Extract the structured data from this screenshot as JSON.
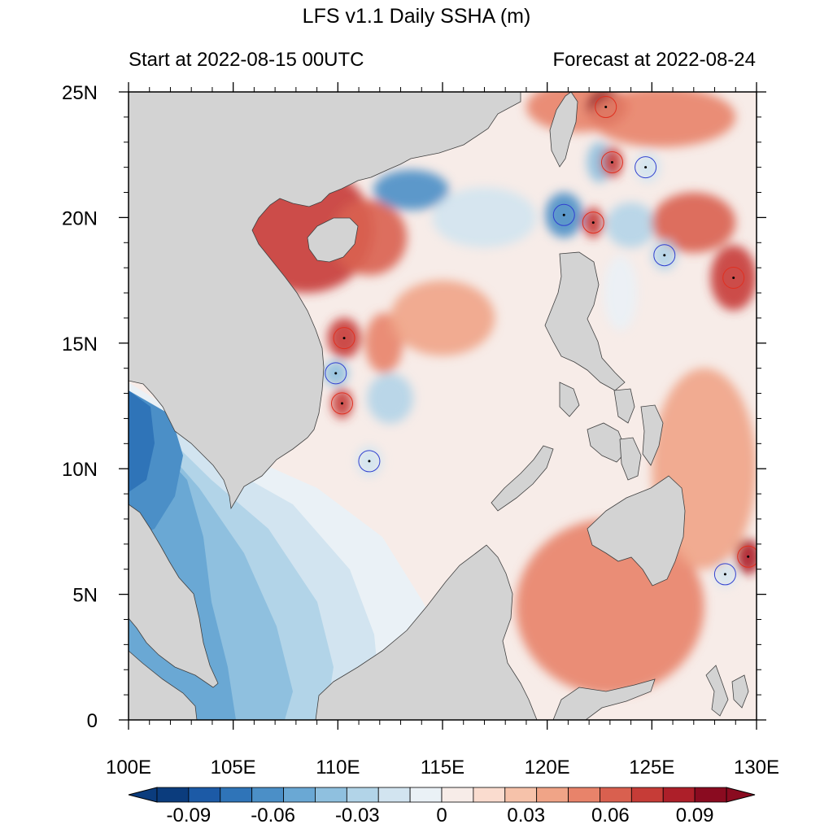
{
  "title": "LFS v1.1 Daily SSHA (m)",
  "subtitle_left": "Start at 2022-08-15 00UTC",
  "subtitle_right": "Forecast at 2022-08-24",
  "colors": {
    "land": "#d3d3d3",
    "land_edge": "#404040",
    "ocean_neutral": "#f7ece8",
    "frame": "#000000",
    "eddy_warm": "#e03020",
    "eddy_cold": "#3040d0"
  },
  "chart_data": {
    "type": "heatmap",
    "variable": "SSHA",
    "unit": "m",
    "x_axis": {
      "range": [
        100,
        130
      ],
      "ticks": [
        100,
        105,
        110,
        115,
        120,
        125,
        130
      ],
      "tick_labels": [
        "100E",
        "105E",
        "110E",
        "115E",
        "120E",
        "125E",
        "130E"
      ]
    },
    "y_axis": {
      "range": [
        0,
        25
      ],
      "ticks": [
        0,
        5,
        10,
        15,
        20,
        25
      ],
      "tick_labels": [
        "0",
        "5N",
        "10N",
        "15N",
        "20N",
        "25N"
      ]
    },
    "colorbar": {
      "levels": [
        -0.1,
        -0.09,
        -0.08,
        -0.07,
        -0.06,
        -0.05,
        -0.04,
        -0.03,
        -0.02,
        -0.01,
        0,
        0.01,
        0.02,
        0.03,
        0.04,
        0.05,
        0.06,
        0.07,
        0.08,
        0.09,
        0.1
      ],
      "colors": [
        "#0b3c7d",
        "#1c5aa6",
        "#2f74b8",
        "#4b8fc7",
        "#6aa8d4",
        "#8fc0df",
        "#b2d4e8",
        "#d2e4f0",
        "#eaf1f6",
        "#f7ece8",
        "#fadccf",
        "#f6c2aa",
        "#f0a487",
        "#e8836a",
        "#d9604f",
        "#c63c37",
        "#ad1f29",
        "#8a0b20"
      ],
      "label_values": [
        -0.09,
        -0.06,
        -0.03,
        0,
        0.03,
        0.06,
        0.09
      ],
      "labels": [
        "-0.09",
        "-0.06",
        "-0.03",
        "0",
        "0.03",
        "0.06",
        "0.09"
      ],
      "end_arrows": true
    },
    "eddies": [
      {
        "lon": 122.8,
        "lat": 24.4,
        "type": "warm"
      },
      {
        "lon": 123.1,
        "lat": 22.2,
        "type": "warm"
      },
      {
        "lon": 124.7,
        "lat": 22.0,
        "type": "cold"
      },
      {
        "lon": 120.8,
        "lat": 20.1,
        "type": "cold"
      },
      {
        "lon": 122.2,
        "lat": 19.8,
        "type": "warm"
      },
      {
        "lon": 125.6,
        "lat": 18.5,
        "type": "cold"
      },
      {
        "lon": 128.9,
        "lat": 17.6,
        "type": "warm"
      },
      {
        "lon": 110.3,
        "lat": 15.2,
        "type": "warm"
      },
      {
        "lon": 109.9,
        "lat": 13.8,
        "type": "cold"
      },
      {
        "lon": 110.2,
        "lat": 12.6,
        "type": "warm"
      },
      {
        "lon": 111.5,
        "lat": 10.3,
        "type": "cold"
      },
      {
        "lon": 129.6,
        "lat": 6.5,
        "type": "warm"
      },
      {
        "lon": 128.5,
        "lat": 5.8,
        "type": "cold"
      }
    ],
    "anomaly_features": [
      {
        "lon": 108.5,
        "lat": 19.5,
        "value": 0.05,
        "rx": 3.2,
        "ry": 2.5
      },
      {
        "lon": 111.5,
        "lat": 19.2,
        "value": 0.04,
        "rx": 1.8,
        "ry": 1.5
      },
      {
        "lon": 113.5,
        "lat": 21.1,
        "value": -0.07,
        "rx": 1.8,
        "ry": 0.8
      },
      {
        "lon": 117.0,
        "lat": 20.0,
        "value": -0.03,
        "rx": 2.5,
        "ry": 1.2
      },
      {
        "lon": 121.5,
        "lat": 24.4,
        "value": 0.03,
        "rx": 2.5,
        "ry": 1.0
      },
      {
        "lon": 122.8,
        "lat": 24.4,
        "value": 0.07,
        "rx": 0.9,
        "ry": 0.7
      },
      {
        "lon": 125.5,
        "lat": 24.0,
        "value": 0.03,
        "rx": 3.5,
        "ry": 1.2
      },
      {
        "lon": 122.5,
        "lat": 22.2,
        "value": -0.05,
        "rx": 0.6,
        "ry": 0.8
      },
      {
        "lon": 123.1,
        "lat": 22.2,
        "value": 0.05,
        "rx": 0.5,
        "ry": 0.6
      },
      {
        "lon": 124.8,
        "lat": 22.0,
        "value": -0.03,
        "rx": 0.6,
        "ry": 0.6
      },
      {
        "lon": 120.8,
        "lat": 20.1,
        "value": -0.07,
        "rx": 0.9,
        "ry": 0.9
      },
      {
        "lon": 122.2,
        "lat": 19.8,
        "value": 0.05,
        "rx": 0.5,
        "ry": 0.6
      },
      {
        "lon": 124.0,
        "lat": 19.7,
        "value": -0.04,
        "rx": 1.2,
        "ry": 0.9
      },
      {
        "lon": 127.0,
        "lat": 19.8,
        "value": 0.04,
        "rx": 2.0,
        "ry": 1.2
      },
      {
        "lon": 125.6,
        "lat": 18.5,
        "value": -0.04,
        "rx": 0.6,
        "ry": 0.6
      },
      {
        "lon": 128.9,
        "lat": 17.6,
        "value": 0.05,
        "rx": 1.1,
        "ry": 1.3
      },
      {
        "lon": 123.5,
        "lat": 17.0,
        "value": -0.02,
        "rx": 0.8,
        "ry": 1.5
      },
      {
        "lon": 110.3,
        "lat": 15.2,
        "value": 0.05,
        "rx": 0.8,
        "ry": 0.8
      },
      {
        "lon": 112.2,
        "lat": 15.0,
        "value": 0.03,
        "rx": 0.9,
        "ry": 1.2
      },
      {
        "lon": 109.9,
        "lat": 13.8,
        "value": -0.05,
        "rx": 0.6,
        "ry": 0.5
      },
      {
        "lon": 112.5,
        "lat": 12.8,
        "value": -0.04,
        "rx": 1.1,
        "ry": 1.0
      },
      {
        "lon": 110.2,
        "lat": 12.6,
        "value": 0.05,
        "rx": 0.5,
        "ry": 0.6
      },
      {
        "lon": 111.5,
        "lat": 10.3,
        "value": -0.03,
        "rx": 0.6,
        "ry": 0.6
      },
      {
        "lon": 115.0,
        "lat": 16.0,
        "value": 0.02,
        "rx": 2.5,
        "ry": 1.5
      },
      {
        "lon": 129.6,
        "lat": 6.5,
        "value": 0.06,
        "rx": 0.6,
        "ry": 0.7
      },
      {
        "lon": 128.5,
        "lat": 5.8,
        "value": -0.03,
        "rx": 0.5,
        "ry": 0.5
      },
      {
        "lon": 123.0,
        "lat": 4.5,
        "value": 0.03,
        "rx": 4.5,
        "ry": 3.5
      },
      {
        "lon": 127.5,
        "lat": 10.0,
        "value": 0.02,
        "rx": 2.5,
        "ry": 4.0
      }
    ],
    "cold_tongue": {
      "value_levels": [
        -0.02,
        -0.03,
        -0.04,
        -0.05,
        -0.06,
        -0.07,
        -0.08
      ]
    }
  }
}
